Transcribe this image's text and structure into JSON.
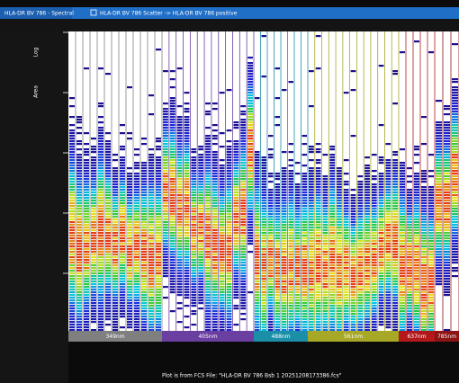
{
  "tabs": [
    {
      "label": "HLA-DR BV 786 - Spectral"
    },
    {
      "label": "HLA-DR BV 786 Scatter -> HLA-DR BV 786 positive"
    }
  ],
  "plot": {
    "axis_labels": [
      "Log",
      "Area"
    ],
    "lasers": [
      {
        "label": "349nm",
        "color": "#7f7f7f"
      },
      {
        "label": "405nm",
        "color": "#6b3fa0"
      },
      {
        "label": "488nm",
        "color": "#1b8fa8"
      },
      {
        "label": "561nm",
        "color": "#a7a826"
      },
      {
        "label": "637nm",
        "color": "#b3191b"
      },
      {
        "label": "785nm",
        "color": "#8c1414"
      }
    ]
  },
  "footer": "Plot is from FCS File: \"HLA-DR BV 786 Bsb 1 20251208173386.fcs\""
}
